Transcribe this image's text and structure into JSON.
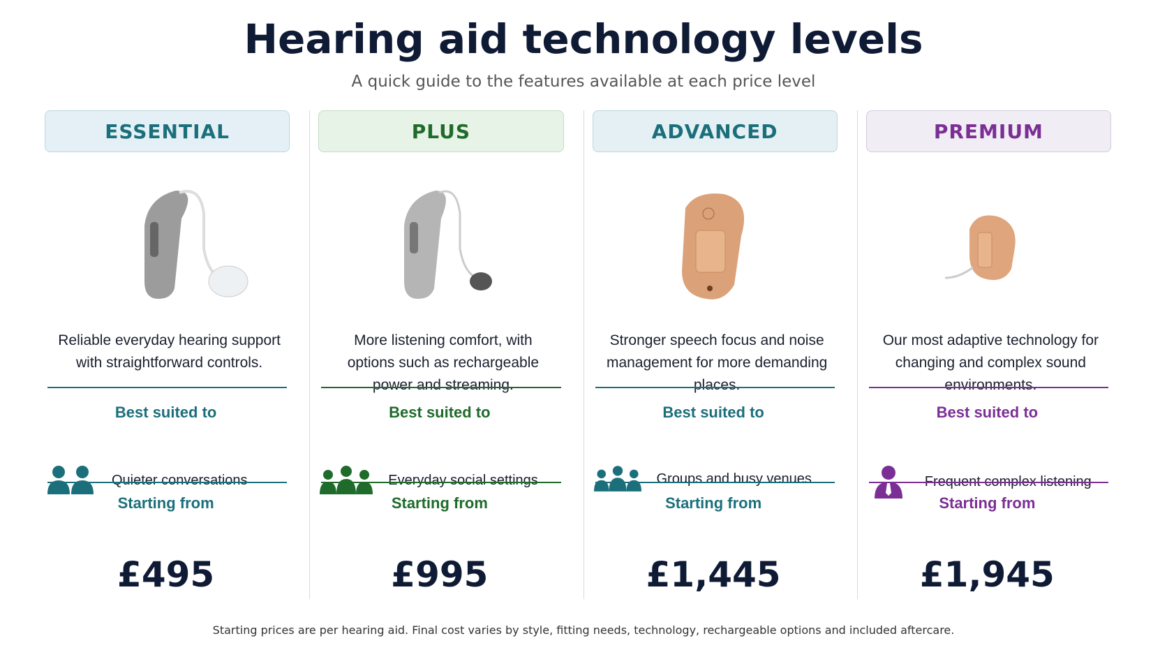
{
  "header": {
    "title": "Hearing aid technology levels",
    "subtitle": "A quick guide to the features available at each price level"
  },
  "tiers": [
    {
      "name": "ESSENTIAL",
      "description": "Reliable everyday hearing support with straightforward controls.",
      "suited_label": "Best suited to",
      "suited_to": "Quieter conversations",
      "price_label": "Starting from",
      "price": "£495"
    },
    {
      "name": "PLUS",
      "description": "More listening comfort, with options such as rechargeable power and streaming.",
      "suited_label": "Best suited to",
      "suited_to": "Everyday social settings",
      "price_label": "Starting from",
      "price": "£995"
    },
    {
      "name": "ADVANCED",
      "description": "Stronger speech focus and noise management for more demanding places.",
      "suited_label": "Best suited to",
      "suited_to": "Groups and busy venues",
      "price_label": "Starting from",
      "price": "£1,445"
    },
    {
      "name": "PREMIUM",
      "description": "Our most adaptive technology for changing and complex sound environments.",
      "suited_label": "Best suited to",
      "suited_to": "Frequent complex listening",
      "price_label": "Starting from",
      "price": "£1,945"
    }
  ],
  "footnote": "Starting prices are per hearing aid. Final cost varies by style, fitting needs, technology, rechargeable options and included aftercare."
}
